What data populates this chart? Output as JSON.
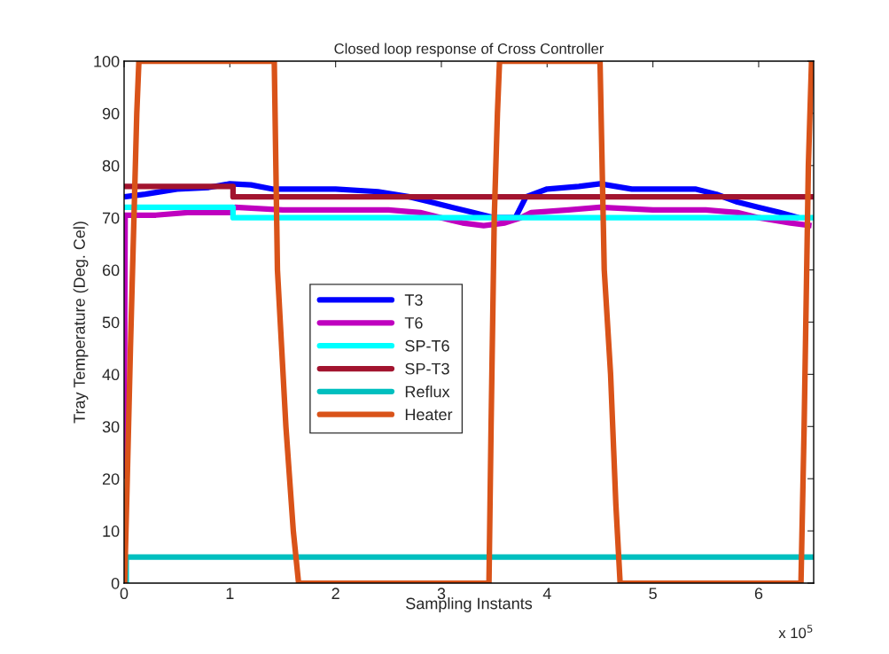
{
  "chart_data": {
    "type": "line",
    "title": "Closed loop response of Cross Controller",
    "xlabel": "Sampling Instants",
    "ylabel": "Tray Temperature (Deg. Cel)",
    "annotations": [
      "x 10$^{5}$"
    ],
    "xlim": [
      0,
      6.52
    ],
    "xticks": [
      0,
      1,
      2,
      3,
      4,
      5,
      6
    ],
    "ylim": [
      0,
      100
    ],
    "yticks": [
      0,
      10,
      20,
      30,
      40,
      50,
      60,
      70,
      80,
      90,
      100
    ],
    "grid": false,
    "legend": "center",
    "line_style": "solid",
    "marker": "none",
    "series": [
      {
        "name": "T3",
        "color": "#0000ff",
        "x": [
          0,
          0.2,
          0.5,
          0.8,
          1.0,
          1.2,
          1.4,
          2.0,
          2.4,
          2.7,
          2.9,
          3.1,
          3.3,
          3.5,
          3.7,
          3.8,
          4.0,
          4.3,
          4.5,
          4.8,
          5.4,
          5.6,
          5.8,
          6.0,
          6.2,
          6.38
        ],
        "values": [
          74,
          74.5,
          75.5,
          75.8,
          76.5,
          76.3,
          75.5,
          75.5,
          75,
          74,
          73,
          72,
          71,
          70,
          70,
          74,
          75.5,
          76,
          76.5,
          75.5,
          75.5,
          74.5,
          73,
          72,
          71,
          70
        ]
      },
      {
        "name": "T6",
        "color": "#bf00bf",
        "x": [
          0,
          0.01,
          0.3,
          0.6,
          1.0,
          1.05,
          1.5,
          2.0,
          2.5,
          2.8,
          3.0,
          3.2,
          3.4,
          3.6,
          3.75,
          3.85,
          4.2,
          4.5,
          5.0,
          5.5,
          5.8,
          6.0,
          6.3,
          6.5
        ],
        "values": [
          20,
          70.5,
          70.5,
          71,
          71,
          72,
          71.5,
          71.5,
          71.5,
          71,
          70,
          69,
          68.5,
          69,
          70,
          71,
          71.5,
          72,
          71.5,
          71.5,
          71,
          70,
          69,
          68.5
        ]
      },
      {
        "name": "SP-T6",
        "color": "#00ffff",
        "x": [
          0,
          1.03,
          1.03,
          6.52
        ],
        "values": [
          72,
          72,
          70,
          70
        ]
      },
      {
        "name": "SP-T3",
        "color": "#a2142f",
        "x": [
          0,
          1.03,
          1.03,
          6.52
        ],
        "values": [
          76,
          76,
          74,
          74
        ]
      },
      {
        "name": "Reflux",
        "color": "#00bfbf",
        "x": [
          0.02,
          0.02,
          6.52
        ],
        "values": [
          0,
          5,
          5
        ]
      },
      {
        "name": "Heater",
        "color": "#d95319",
        "x": [
          0.005,
          0.03,
          0.06,
          0.1,
          0.12,
          0.14,
          1.42,
          1.45,
          1.53,
          1.6,
          1.65,
          3.45,
          3.47,
          3.5,
          3.53,
          3.55,
          4.5,
          4.54,
          4.6,
          4.65,
          4.69,
          6.4,
          6.43,
          6.47,
          6.5
        ],
        "values": [
          0,
          20,
          45,
          75,
          90,
          100,
          100,
          60,
          30,
          10,
          0,
          0,
          30,
          70,
          90,
          100,
          100,
          60,
          40,
          15,
          0,
          0,
          30,
          80,
          100
        ]
      }
    ]
  }
}
